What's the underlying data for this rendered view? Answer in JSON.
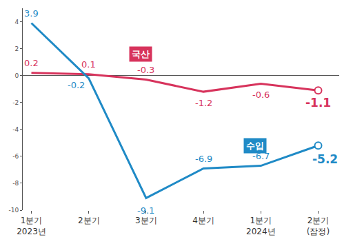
{
  "chart_data": {
    "type": "line",
    "categories": [
      "1분기\n2023년",
      "2분기",
      "3분기",
      "4분기",
      "1분기\n2024년",
      "2분기\n(잠정)"
    ],
    "series": [
      {
        "name": "국산",
        "color": "#d7335c",
        "values": [
          0.2,
          0.1,
          -0.3,
          -1.2,
          -0.6,
          -1.1
        ]
      },
      {
        "name": "수입",
        "color": "#1f8ac6",
        "values": [
          3.9,
          -0.2,
          -9.1,
          -6.9,
          -6.7,
          -5.2
        ]
      }
    ],
    "ylim": [
      -10,
      5
    ],
    "yticks": [
      -10,
      -8,
      -6,
      -4,
      -2,
      0,
      2,
      4
    ],
    "grid": false,
    "data_labels": true
  }
}
